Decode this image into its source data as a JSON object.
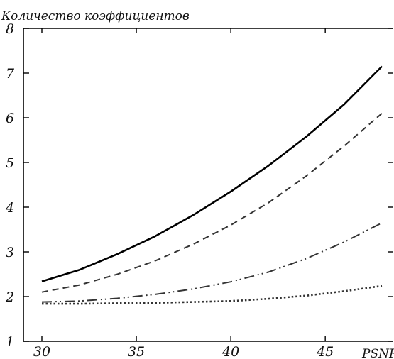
{
  "chart_data": {
    "type": "line",
    "title": "",
    "ylabel": "Количество коэффициентов",
    "xlabel": "PSNR",
    "xlim": [
      30,
      48
    ],
    "ylim": [
      1,
      8
    ],
    "x_ticks": [
      30,
      35,
      40,
      45
    ],
    "y_ticks": [
      1,
      2,
      3,
      4,
      5,
      6,
      7,
      8
    ],
    "grid": false,
    "series": [
      {
        "style": "solid",
        "color": "#000000",
        "x": [
          30,
          32,
          34,
          36,
          38,
          40,
          42,
          44,
          46,
          48
        ],
        "y": [
          2.34,
          2.6,
          2.95,
          3.35,
          3.82,
          4.35,
          4.93,
          5.58,
          6.3,
          7.15
        ]
      },
      {
        "style": "dashed",
        "color": "#333333",
        "x": [
          30,
          32,
          34,
          36,
          38,
          40,
          42,
          44,
          46,
          48
        ],
        "y": [
          2.1,
          2.26,
          2.5,
          2.8,
          3.17,
          3.6,
          4.1,
          4.7,
          5.37,
          6.1
        ]
      },
      {
        "style": "dash-dot-dot",
        "color": "#333333",
        "x": [
          30,
          32,
          34,
          36,
          38,
          40,
          42,
          44,
          46,
          48
        ],
        "y": [
          1.88,
          1.9,
          1.96,
          2.05,
          2.17,
          2.33,
          2.55,
          2.85,
          3.22,
          3.65
        ]
      },
      {
        "style": "dotted",
        "color": "#333333",
        "x": [
          30,
          32,
          34,
          36,
          38,
          40,
          42,
          44,
          46,
          48
        ],
        "y": [
          1.84,
          1.84,
          1.85,
          1.86,
          1.88,
          1.9,
          1.95,
          2.02,
          2.12,
          2.24
        ]
      }
    ]
  }
}
